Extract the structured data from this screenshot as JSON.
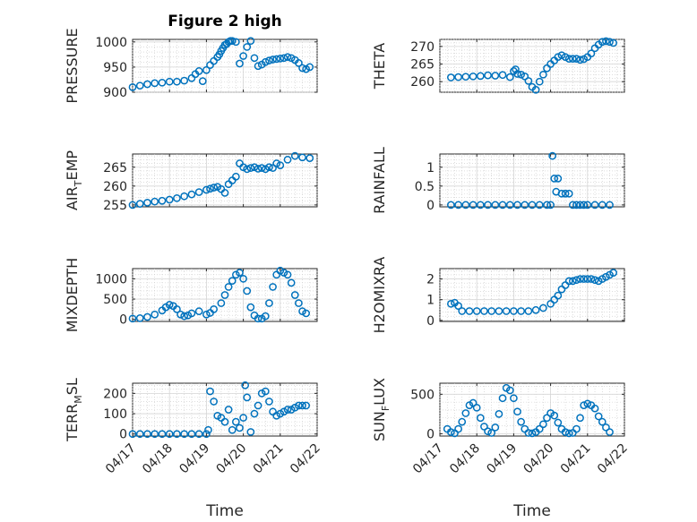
{
  "figure_title": "Figure 2 high",
  "marker_color": "#0072BD",
  "x_axis_label": "Time",
  "x_tick_labels": [
    "04/17",
    "04/18",
    "04/19",
    "04/20",
    "04/21",
    "04/22"
  ],
  "chart_data": [
    {
      "type": "scatter",
      "id": "pressure",
      "ylabel": "PRESSURE",
      "ylim": [
        900,
        1005
      ],
      "yticks": [
        900,
        950,
        1000
      ],
      "xlim": [
        0,
        5
      ],
      "grid": true,
      "x": [
        0.0,
        0.2,
        0.4,
        0.6,
        0.8,
        1.0,
        1.2,
        1.4,
        1.6,
        1.7,
        1.8,
        1.9,
        2.0,
        2.1,
        2.2,
        2.3,
        2.35,
        2.4,
        2.45,
        2.5,
        2.55,
        2.6,
        2.65,
        2.7,
        2.8,
        2.9,
        3.0,
        3.1,
        3.2,
        3.3,
        3.4,
        3.5,
        3.6,
        3.7,
        3.8,
        3.9,
        4.0,
        4.1,
        4.2,
        4.3,
        4.4,
        4.5,
        4.6,
        4.7,
        4.8
      ],
      "y": [
        910,
        913,
        916,
        918,
        919,
        921,
        921,
        923,
        928,
        936,
        942,
        922,
        944,
        954,
        962,
        970,
        975,
        982,
        988,
        994,
        996,
        1000,
        1002,
        1002,
        1000,
        957,
        972,
        990,
        1002,
        968,
        952,
        955,
        960,
        963,
        965,
        966,
        967,
        968,
        970,
        968,
        964,
        958,
        948,
        946,
        950
      ]
    },
    {
      "type": "scatter",
      "id": "theta",
      "ylabel": "THETA",
      "ylim": [
        257,
        272
      ],
      "yticks": [
        260,
        265,
        270
      ],
      "xlim": [
        0,
        5
      ],
      "grid": true,
      "x": [
        0.3,
        0.5,
        0.7,
        0.9,
        1.1,
        1.3,
        1.5,
        1.7,
        1.9,
        2.0,
        2.05,
        2.1,
        2.2,
        2.3,
        2.4,
        2.5,
        2.6,
        2.7,
        2.8,
        2.9,
        3.0,
        3.1,
        3.2,
        3.3,
        3.4,
        3.5,
        3.6,
        3.7,
        3.8,
        3.9,
        4.0,
        4.1,
        4.2,
        4.3,
        4.4,
        4.5,
        4.6,
        4.7
      ],
      "y": [
        261.2,
        261.3,
        261.4,
        261.5,
        261.6,
        261.8,
        261.7,
        261.9,
        261.3,
        263.0,
        263.5,
        262.2,
        262.0,
        261.5,
        260.2,
        258.5,
        257.7,
        260.0,
        262.0,
        263.8,
        265.0,
        266.0,
        267.0,
        267.5,
        267.0,
        266.5,
        266.5,
        266.5,
        266.2,
        266.4,
        267.0,
        268.0,
        269.5,
        270.5,
        271.3,
        271.5,
        271.3,
        271.0
      ]
    },
    {
      "type": "scatter",
      "id": "air_temp",
      "ylabel": "AIR",
      "ylabel_sub": "T",
      "ylabel_tail": "EMP",
      "ylim": [
        254.5,
        268.5
      ],
      "yticks": [
        255,
        260,
        265
      ],
      "xlim": [
        0,
        5
      ],
      "grid": true,
      "x": [
        0.0,
        0.2,
        0.4,
        0.6,
        0.8,
        1.0,
        1.2,
        1.4,
        1.6,
        1.8,
        2.0,
        2.1,
        2.2,
        2.3,
        2.4,
        2.5,
        2.6,
        2.7,
        2.8,
        2.9,
        3.0,
        3.1,
        3.2,
        3.3,
        3.4,
        3.5,
        3.6,
        3.7,
        3.8,
        3.9,
        4.0,
        4.2,
        4.4,
        4.6,
        4.8
      ],
      "y": [
        255.0,
        255.3,
        255.6,
        255.9,
        256.1,
        256.4,
        256.8,
        257.3,
        257.8,
        258.4,
        259.0,
        259.3,
        259.6,
        259.8,
        259.2,
        258.2,
        260.5,
        261.5,
        262.5,
        266.0,
        265.0,
        264.5,
        264.8,
        265.0,
        264.6,
        264.8,
        264.5,
        265.0,
        264.8,
        266.0,
        265.5,
        267.0,
        268.0,
        267.6,
        267.4
      ]
    },
    {
      "type": "scatter",
      "id": "rainfall",
      "ylabel": "RAINFALL",
      "ylim": [
        -0.05,
        1.35
      ],
      "yticks": [
        0,
        0.5,
        1
      ],
      "ytick_labels": [
        "0",
        "0.5",
        "1"
      ],
      "xlim": [
        0,
        5
      ],
      "grid": true,
      "x": [
        0.3,
        0.5,
        0.7,
        0.9,
        1.1,
        1.3,
        1.5,
        1.7,
        1.9,
        2.1,
        2.3,
        2.5,
        2.7,
        2.9,
        3.0,
        3.05,
        3.1,
        3.15,
        3.2,
        3.3,
        3.4,
        3.5,
        3.6,
        3.7,
        3.8,
        3.9,
        4.0,
        4.2,
        4.4,
        4.6
      ],
      "y": [
        0,
        0,
        0,
        0,
        0,
        0,
        0,
        0,
        0,
        0,
        0,
        0,
        0,
        0,
        0,
        1.3,
        0.7,
        0.35,
        0.7,
        0.3,
        0.3,
        0.3,
        0,
        0,
        0,
        0,
        0,
        0,
        0,
        0
      ]
    },
    {
      "type": "scatter",
      "id": "mixdepth",
      "ylabel": "MIXDEPTH",
      "ylim": [
        -50,
        1250
      ],
      "yticks": [
        0,
        500,
        1000
      ],
      "xlim": [
        0,
        5
      ],
      "grid": true,
      "x": [
        0.0,
        0.2,
        0.4,
        0.6,
        0.8,
        0.9,
        1.0,
        1.1,
        1.2,
        1.3,
        1.4,
        1.5,
        1.6,
        1.8,
        2.0,
        2.1,
        2.2,
        2.4,
        2.5,
        2.6,
        2.7,
        2.8,
        2.9,
        3.0,
        3.1,
        3.2,
        3.3,
        3.4,
        3.5,
        3.6,
        3.7,
        3.8,
        3.9,
        4.0,
        4.1,
        4.2,
        4.3,
        4.4,
        4.5,
        4.6,
        4.7
      ],
      "y": [
        20,
        30,
        60,
        120,
        220,
        300,
        360,
        330,
        250,
        120,
        80,
        100,
        150,
        200,
        120,
        160,
        250,
        400,
        600,
        800,
        950,
        1100,
        1150,
        1000,
        700,
        300,
        100,
        20,
        20,
        80,
        400,
        800,
        1100,
        1200,
        1150,
        1100,
        900,
        600,
        400,
        200,
        150
      ]
    },
    {
      "type": "scatter",
      "id": "h2omixra",
      "ylabel": "H2OMIXRA",
      "ylim": [
        -0.05,
        2.5
      ],
      "yticks": [
        0,
        1,
        2
      ],
      "xlim": [
        0,
        5
      ],
      "grid": true,
      "x": [
        0.3,
        0.4,
        0.5,
        0.6,
        0.8,
        1.0,
        1.2,
        1.4,
        1.6,
        1.8,
        2.0,
        2.2,
        2.4,
        2.6,
        2.8,
        3.0,
        3.1,
        3.2,
        3.3,
        3.4,
        3.5,
        3.6,
        3.7,
        3.8,
        3.9,
        4.0,
        4.1,
        4.2,
        4.3,
        4.4,
        4.5,
        4.6,
        4.7
      ],
      "y": [
        0.8,
        0.85,
        0.7,
        0.45,
        0.45,
        0.45,
        0.45,
        0.45,
        0.45,
        0.45,
        0.45,
        0.45,
        0.45,
        0.5,
        0.6,
        0.8,
        1.0,
        1.2,
        1.5,
        1.7,
        1.9,
        1.9,
        1.95,
        2.0,
        2.0,
        2.0,
        2.0,
        1.95,
        1.9,
        2.0,
        2.1,
        2.2,
        2.3
      ]
    },
    {
      "type": "scatter",
      "id": "terr_msl",
      "ylabel": "TERR",
      "ylabel_sub": "M",
      "ylabel_tail": "SL",
      "ylim": [
        -10,
        250
      ],
      "yticks": [
        0,
        100,
        200
      ],
      "xlim": [
        0,
        5
      ],
      "grid": true,
      "x": [
        0.0,
        0.2,
        0.4,
        0.6,
        0.8,
        1.0,
        1.2,
        1.4,
        1.6,
        1.8,
        2.0,
        2.05,
        2.1,
        2.2,
        2.3,
        2.4,
        2.5,
        2.6,
        2.7,
        2.8,
        2.9,
        3.0,
        3.05,
        3.1,
        3.2,
        3.3,
        3.4,
        3.5,
        3.6,
        3.7,
        3.8,
        3.9,
        4.0,
        4.1,
        4.2,
        4.3,
        4.4,
        4.5,
        4.6,
        4.7
      ],
      "y": [
        0,
        0,
        0,
        0,
        0,
        0,
        0,
        0,
        0,
        0,
        0,
        20,
        210,
        160,
        90,
        80,
        60,
        120,
        20,
        60,
        30,
        80,
        240,
        180,
        10,
        100,
        140,
        200,
        210,
        160,
        110,
        90,
        100,
        110,
        120,
        120,
        130,
        140,
        140,
        140
      ]
    },
    {
      "type": "scatter",
      "id": "sun_flux",
      "ylabel": "SUN",
      "ylabel_sub": "F",
      "ylabel_tail": "LUX",
      "ylim": [
        -30,
        640
      ],
      "yticks": [
        0,
        500
      ],
      "xlim": [
        0,
        5
      ],
      "grid": true,
      "x": [
        0.2,
        0.3,
        0.4,
        0.5,
        0.6,
        0.7,
        0.8,
        0.9,
        1.0,
        1.1,
        1.2,
        1.3,
        1.4,
        1.5,
        1.6,
        1.7,
        1.8,
        1.9,
        2.0,
        2.1,
        2.2,
        2.3,
        2.4,
        2.5,
        2.6,
        2.7,
        2.8,
        2.9,
        3.0,
        3.1,
        3.2,
        3.3,
        3.4,
        3.5,
        3.6,
        3.7,
        3.8,
        3.9,
        4.0,
        4.1,
        4.2,
        4.3,
        4.4,
        4.5,
        4.6
      ],
      "y": [
        60,
        20,
        5,
        60,
        150,
        260,
        360,
        390,
        330,
        200,
        90,
        30,
        10,
        80,
        250,
        450,
        580,
        550,
        450,
        280,
        150,
        60,
        10,
        5,
        20,
        60,
        120,
        200,
        260,
        230,
        140,
        60,
        20,
        5,
        10,
        60,
        200,
        360,
        380,
        360,
        320,
        220,
        150,
        80,
        20
      ]
    }
  ]
}
